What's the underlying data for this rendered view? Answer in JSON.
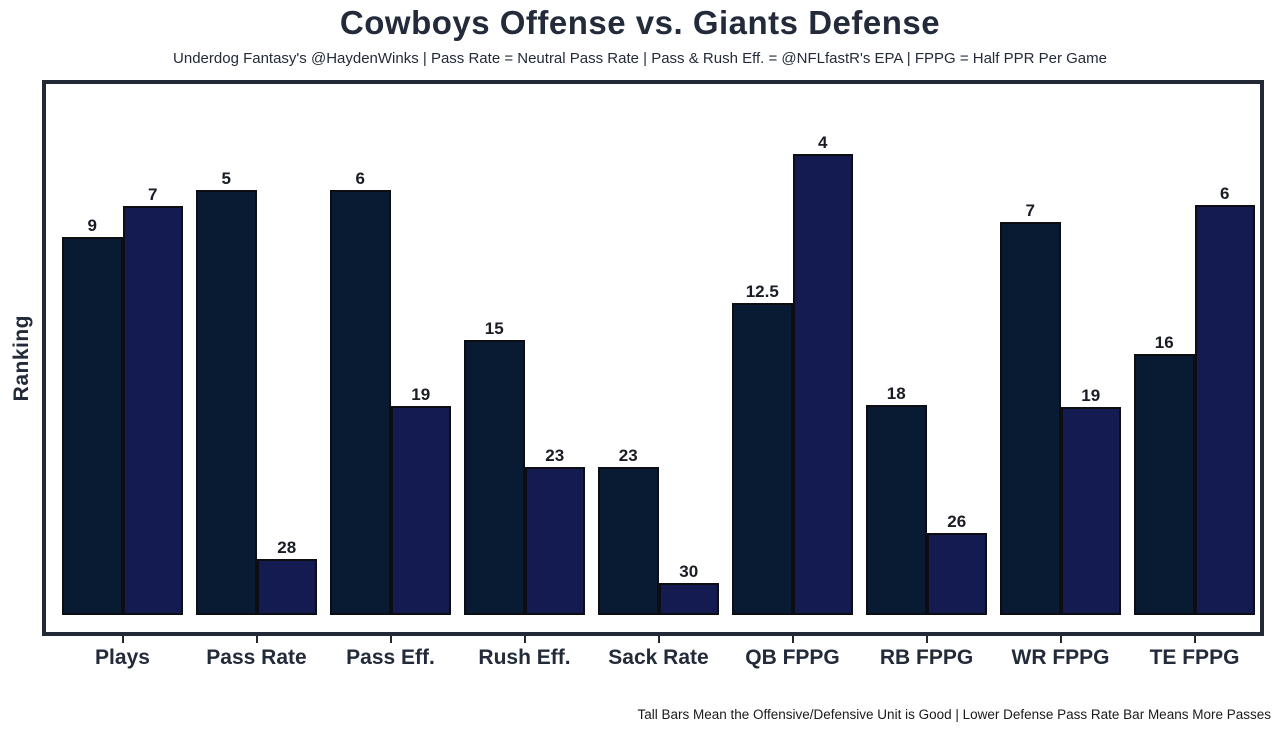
{
  "title": "Cowboys Offense vs. Giants Defense",
  "subtitle": "Underdog Fantasy's @HaydenWinks | Pass Rate = Neutral Pass Rate | Pass & Rush Eff. = @NFLfastR's EPA | FPPG = Half PPR Per Game",
  "ylabel": "Ranking",
  "footer": "Tall Bars Mean the Offensive/Defensive Unit is Good | Lower Defense Pass Rate Bar Means More Passes",
  "colors": {
    "offense_bar": "#081b32",
    "defense_bar": "#141b50",
    "bar_border": "#0d0e14",
    "plot_border": "#222836",
    "text": "#232b3a",
    "value_label_text": "#191c24",
    "footer_text": "#1a1a1a",
    "background": "#ffffff"
  },
  "chart_data": {
    "type": "bar",
    "title": "Cowboys Offense vs. Giants Defense",
    "subtitle": "Underdog Fantasy's @HaydenWinks | Pass Rate = Neutral Pass Rate | Pass & Rush Eff. = @NFLfastR's EPA | FPPG = Half PPR Per Game",
    "ylabel": "Ranking",
    "xlabel": "",
    "categories": [
      "Plays",
      "Pass Rate",
      "Pass Eff.",
      "Rush Eff.",
      "Sack Rate",
      "QB FPPG",
      "RB FPPG",
      "WR FPPG",
      "TE FPPG"
    ],
    "series": [
      {
        "name": "Cowboys Offense",
        "values": [
          9,
          5,
          6,
          15,
          23,
          12.5,
          18,
          7,
          16
        ],
        "bar_height_pct": [
          71.2,
          80.0,
          80.0,
          51.8,
          27.9,
          58.8,
          39.5,
          74.0,
          49.1
        ],
        "color": "#081b32"
      },
      {
        "name": "Giants Defense",
        "values": [
          7,
          28,
          19,
          23,
          30,
          4,
          26,
          19,
          6
        ],
        "bar_height_pct": [
          77.0,
          10.5,
          39.4,
          27.9,
          6.0,
          86.8,
          15.4,
          39.2,
          77.2
        ],
        "color": "#141b50"
      }
    ],
    "value_labels_shown": true,
    "y_axis_ticks_shown": false,
    "grid": false,
    "legend": "none",
    "height_encoding": "taller bar = better (lower) ranking number; heights as measured percent of plot height",
    "note_bottom_right": "Tall Bars Mean the Offensive/Defensive Unit is Good | Lower Defense Pass Rate Bar Means More Passes"
  }
}
